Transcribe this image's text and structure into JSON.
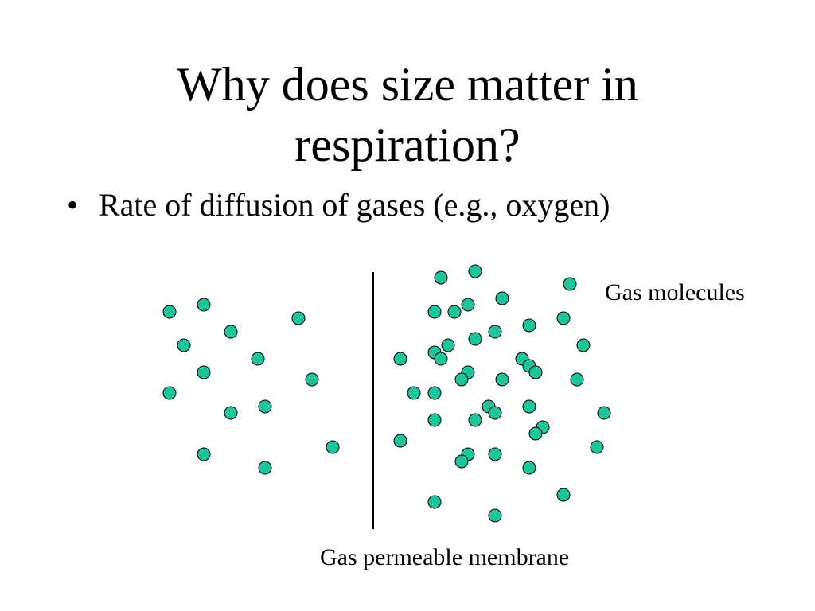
{
  "slide": {
    "title_line1": "Why does size matter in",
    "title_line2": "respiration?",
    "bullets": [
      {
        "marker": "•",
        "text": "Rate of diffusion of gases (e.g., oxygen)"
      }
    ]
  },
  "diagram": {
    "molecule_label": "Gas molecules",
    "membrane_label": "Gas permeable membrane",
    "molecule_fill": "#1fc49b",
    "molecule_stroke": "#000000",
    "membrane_color": "#000000"
  }
}
